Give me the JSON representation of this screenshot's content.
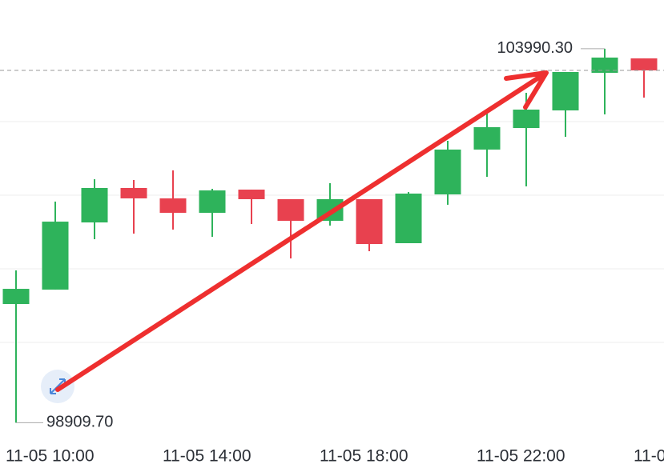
{
  "chart_data": {
    "type": "candlestick",
    "categories": [
      null,
      "11-05 10:00",
      null,
      null,
      null,
      "11-05 14:00",
      null,
      null,
      null,
      "11-05 18:00",
      null,
      null,
      null,
      "11-05 22:00",
      null,
      null,
      null,
      "11-0"
    ],
    "open": [
      100522,
      100717,
      101630,
      102098,
      101957,
      101761,
      102076,
      101946,
      101652,
      101946,
      101348,
      102011,
      102620,
      102913,
      103152,
      103663,
      103859,
      null
    ],
    "high": [
      100978,
      101913,
      102217,
      102207,
      102337,
      102087,
      102076,
      101946,
      102163,
      101946,
      102043,
      102739,
      103120,
      103391,
      103674,
      103990.3,
      103859,
      null
    ],
    "low": [
      98909.7,
      100717,
      101402,
      101478,
      101533,
      101435,
      101609,
      101141,
      101587,
      101239,
      101348,
      101870,
      102250,
      102120,
      102793,
      103098,
      103326,
      null
    ],
    "close": [
      100728,
      101641,
      102098,
      101957,
      101761,
      102065,
      101946,
      101652,
      101946,
      101337,
      102022,
      102620,
      102924,
      103163,
      103674,
      103870,
      103696,
      null
    ],
    "up_color": "#2eb35b",
    "down_color": "#e8414f",
    "ylim": [
      98696,
      104652
    ],
    "gridlines": [
      100000,
      101000,
      102000,
      103000
    ],
    "annotations": [
      {
        "value": 103990.3,
        "label": "103990.30",
        "index": 15
      },
      {
        "value": 98909.7,
        "label": "98909.70",
        "index": 0
      }
    ]
  }
}
